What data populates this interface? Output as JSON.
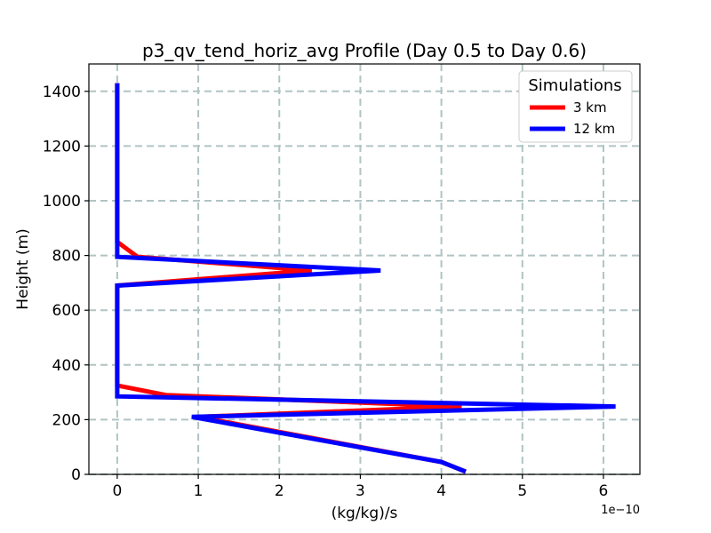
{
  "chart_data": {
    "type": "line",
    "title": "p3_qv_tend_horiz_avg Profile (Day 0.5 to Day 0.6)",
    "xlabel": "(kg/kg)/s",
    "ylabel": "Height (m)",
    "x_offset_label": "1e−10",
    "xlim": [
      -0.35,
      6.45
    ],
    "ylim": [
      0,
      1500
    ],
    "xticks": [
      0,
      1,
      2,
      3,
      4,
      5,
      6
    ],
    "xtick_labels": [
      "0",
      "1",
      "2",
      "3",
      "4",
      "5",
      "6"
    ],
    "yticks": [
      0,
      200,
      400,
      600,
      800,
      1000,
      1200,
      1400
    ],
    "ytick_labels": [
      "0",
      "200",
      "400",
      "600",
      "800",
      "1000",
      "1200",
      "1400"
    ],
    "grid": true,
    "legend": {
      "title": "Simulations",
      "placement": "top-right"
    },
    "series": [
      {
        "name": "3 km",
        "color": "#ff0000",
        "points": [
          [
            4.3,
            10
          ],
          [
            4.0,
            45
          ],
          [
            1.0,
            210
          ],
          [
            4.25,
            248
          ],
          [
            0.6,
            290
          ],
          [
            0.0,
            325
          ],
          [
            0.0,
            690
          ],
          [
            2.4,
            745
          ],
          [
            0.25,
            795
          ],
          [
            0.0,
            850
          ],
          [
            0.0,
            1430
          ]
        ]
      },
      {
        "name": "12 km",
        "color": "#0000ff",
        "points": [
          [
            4.3,
            10
          ],
          [
            4.0,
            45
          ],
          [
            0.92,
            210
          ],
          [
            6.15,
            248
          ],
          [
            0.0,
            285
          ],
          [
            0.0,
            690
          ],
          [
            3.25,
            745
          ],
          [
            0.0,
            795
          ],
          [
            0.0,
            1430
          ]
        ]
      }
    ]
  }
}
